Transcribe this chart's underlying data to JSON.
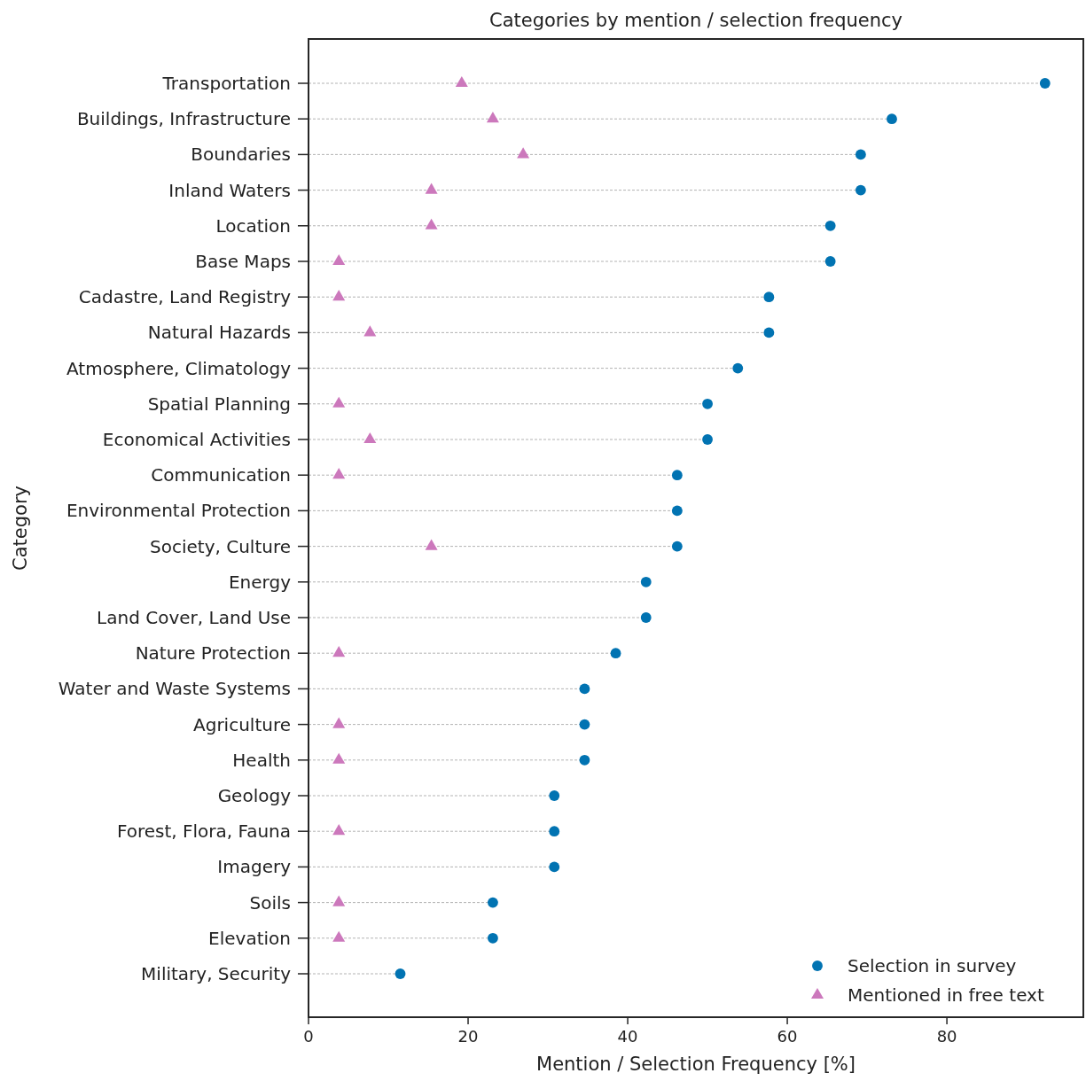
{
  "chart_data": {
    "type": "scatter",
    "orientation": "horizontal",
    "title": "Categories by mention / selection frequency",
    "xlabel": "Mention / Selection Frequency [%]",
    "ylabel": "Category",
    "categories": [
      "Transportation",
      "Buildings, Infrastructure",
      "Boundaries",
      "Inland Waters",
      "Location",
      "Base Maps",
      "Cadastre, Land Registry",
      "Natural Hazards",
      "Atmosphere, Climatology",
      "Spatial Planning",
      "Economical Activities",
      "Communication",
      "Environmental Protection",
      "Society, Culture",
      "Energy",
      "Land Cover, Land Use",
      "Nature Protection",
      "Water and Waste Systems",
      "Agriculture",
      "Health",
      "Geology",
      "Forest, Flora, Fauna",
      "Imagery",
      "Soils",
      "Elevation",
      "Military, Security"
    ],
    "series": [
      {
        "name": "Selection in survey",
        "type": "lollipop",
        "color": "#0173b2",
        "marker": "circle",
        "line_style": "dashed",
        "values": [
          92.3,
          73.1,
          69.2,
          69.2,
          65.4,
          65.4,
          57.7,
          57.7,
          53.8,
          50,
          50,
          46.2,
          46.2,
          46.2,
          42.3,
          42.3,
          38.5,
          34.6,
          34.6,
          34.6,
          30.8,
          30.8,
          30.8,
          23.1,
          23.1,
          11.5
        ]
      },
      {
        "name": "Mentioned in free text",
        "color": "#cc78bc",
        "marker": "triangle",
        "values": [
          19.2,
          23.1,
          26.9,
          15.4,
          15.4,
          3.8,
          3.8,
          7.7,
          null,
          3.8,
          7.7,
          3.8,
          null,
          15.4,
          null,
          null,
          3.8,
          null,
          3.8,
          3.8,
          null,
          3.8,
          null,
          3.8,
          3.8,
          null
        ]
      }
    ],
    "xlim": [
      0,
      97.1
    ],
    "xticks": [
      0,
      20,
      40,
      60,
      80
    ],
    "grid": false,
    "legend": "bottom right"
  }
}
